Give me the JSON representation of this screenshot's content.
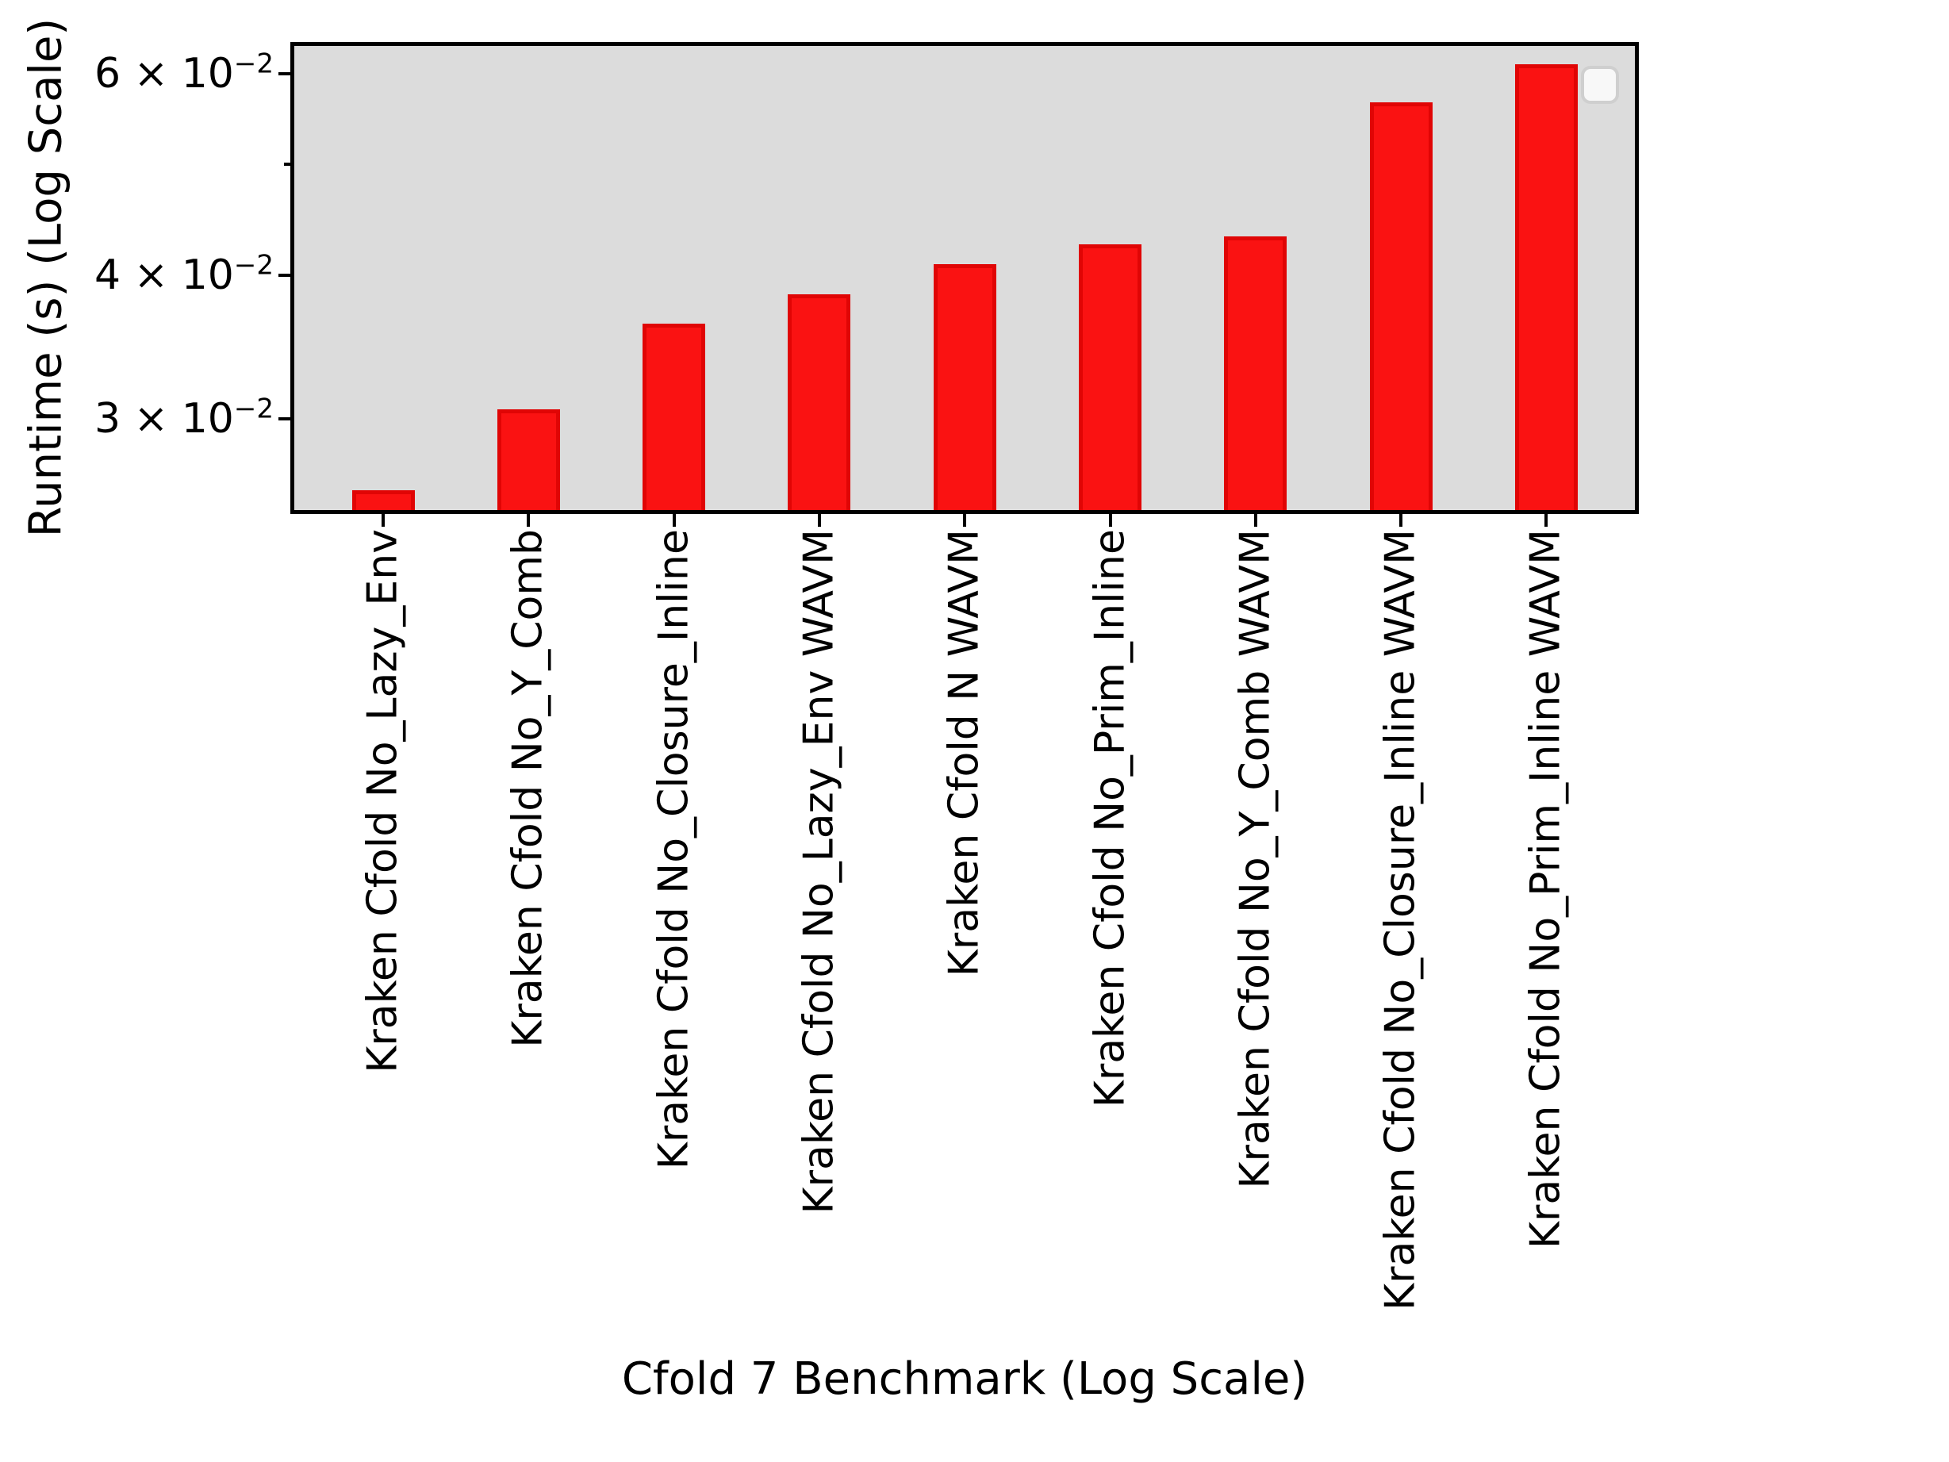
{
  "figure": {
    "background": "#ffffff"
  },
  "chart_data": {
    "type": "bar",
    "title": "",
    "xlabel": "Cfold 7 Benchmark (Log Scale)",
    "ylabel": "Runtime (s) (Log Scale)",
    "yscale": "log",
    "ylim": [
      0.0249,
      0.0636
    ],
    "grid": false,
    "categories": [
      "Kraken Cfold No_Lazy_Env",
      "Kraken Cfold No_Y_Comb",
      "Kraken Cfold No_Closure_Inline",
      "Kraken Cfold No_Lazy_Env WAVM",
      "Kraken Cfold N WAVM",
      "Kraken Cfold No_Prim_Inline",
      "Kraken Cfold No_Y_Comb WAVM",
      "Kraken Cfold No_Closure_Inline WAVM",
      "Kraken Cfold No_Prim_Inline WAVM"
    ],
    "values": [
      0.026,
      0.0306,
      0.0363,
      0.0385,
      0.0409,
      0.0426,
      0.0433,
      0.0566,
      0.0611
    ],
    "y_major_ticks": [
      {
        "value": 0.06,
        "base": "6 × 10",
        "exp": "−2"
      },
      {
        "value": 0.04,
        "base": "4 × 10",
        "exp": "−2"
      },
      {
        "value": 0.03,
        "base": "3 × 10",
        "exp": "−2"
      }
    ],
    "y_minor_ticks": [
      0.05
    ],
    "legend": {
      "visible": true,
      "entries": []
    },
    "colors": {
      "bar_fill": "#fa1212",
      "bar_edge": "#e00505",
      "plot_bg": "#dcdcdc",
      "figure_bg": "#ffffff",
      "legend_border": "#cfcfcf",
      "spine": "#000000"
    }
  }
}
